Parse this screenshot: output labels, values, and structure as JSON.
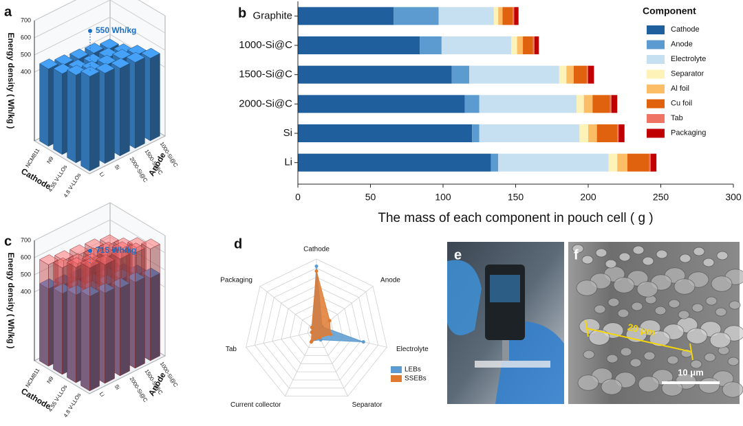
{
  "chart_data": [
    {
      "panel": "a",
      "type": "bar3d",
      "zlabel": "Energy density ( Wh/kg )",
      "xlabel": "Cathode",
      "ylabel": "Anode",
      "cathodes": [
        "NCM811",
        "N9",
        "4.55 V-LLOs",
        "4.8 V-LLOs"
      ],
      "anodes": [
        "Li",
        "Si",
        "2000-Si@C",
        "1500-Si@C",
        "1000-Si@C"
      ],
      "layers": [
        {
          "color": "#3a86cf",
          "values": [
            [
              450,
              470,
              510,
              550
            ],
            [
              430,
              450,
              490,
              525
            ],
            [
              420,
              440,
              480,
              510
            ],
            [
              410,
              430,
              470,
              500
            ],
            [
              390,
              410,
              450,
              480
            ]
          ]
        }
      ],
      "zlim": [
        0,
        700
      ],
      "zticks": [
        400,
        500,
        600,
        700
      ],
      "annotation": "550 Wh/kg"
    },
    {
      "panel": "b",
      "type": "barh_stacked",
      "xlabel": "The mass of each component in pouch cell ( g )",
      "categories": [
        "Graphite",
        "1000-Si@C",
        "1500-Si@C",
        "2000-Si@C",
        "Si",
        "Li"
      ],
      "series": [
        {
          "name": "Cathode",
          "color": "#1f5f9e",
          "values": [
            66,
            84,
            106,
            115,
            120,
            133
          ]
        },
        {
          "name": "Anode",
          "color": "#5b9bd0",
          "values": [
            31,
            15,
            12,
            10,
            5,
            5
          ]
        },
        {
          "name": "Electrolyte",
          "color": "#c6e0f2",
          "values": [
            38,
            48,
            62,
            67,
            69,
            76
          ]
        },
        {
          "name": "Separator",
          "color": "#fdf2b8",
          "values": [
            3,
            4,
            5,
            5,
            6,
            6
          ]
        },
        {
          "name": "Al foil",
          "color": "#fbbd66",
          "values": [
            3,
            4,
            5,
            6,
            6,
            7
          ]
        },
        {
          "name": "Cu foil",
          "color": "#e0620f",
          "values": [
            7,
            7,
            9,
            12,
            14,
            15
          ]
        },
        {
          "name": "Tab",
          "color": "#f07464",
          "values": [
            1,
            1,
            1,
            1,
            1,
            1
          ]
        },
        {
          "name": "Packaging",
          "color": "#c00000",
          "values": [
            3,
            3,
            4,
            4,
            4,
            4
          ]
        }
      ],
      "xlim": [
        0,
        300
      ],
      "xticks": [
        0,
        50,
        100,
        150,
        200,
        250,
        300
      ],
      "legend_title": "Component",
      "legend": "right"
    },
    {
      "panel": "c",
      "type": "bar3d",
      "zlabel": "Energy density ( Wh/kg )",
      "xlabel": "Cathode",
      "ylabel": "Anode",
      "cathodes": [
        "NCM811",
        "N9",
        "4.55 V-LLOs",
        "4.8 V-LLOs"
      ],
      "anodes": [
        "Li",
        "Si",
        "2000-Si@C",
        "1500-Si@C",
        "1000-Si@C"
      ],
      "layers": [
        {
          "color": "#3a86cf",
          "values": [
            [
              450,
              470,
              510,
              550
            ],
            [
              430,
              450,
              490,
              525
            ],
            [
              420,
              440,
              480,
              510
            ],
            [
              410,
              430,
              470,
              500
            ],
            [
              390,
              410,
              450,
              480
            ]
          ]
        },
        {
          "color": "#e8585a",
          "opacity": 0.5,
          "values": [
            [
              590,
              620,
              670,
              715
            ],
            [
              570,
              600,
              650,
              690
            ],
            [
              560,
              590,
              640,
              680
            ],
            [
              550,
              580,
              630,
              670
            ],
            [
              530,
              560,
              610,
              650
            ]
          ]
        }
      ],
      "zlim": [
        0,
        700
      ],
      "zticks": [
        400,
        500,
        600,
        700
      ],
      "annotation": "715 Wh/kg"
    },
    {
      "panel": "d",
      "type": "radar",
      "axes": [
        "Cathode",
        "Anode",
        "Electrolyte",
        "Separator",
        "Current collector",
        "Tab",
        "Packaging"
      ],
      "series": [
        {
          "name": "LEBs",
          "color": "#5b9bd0",
          "values": [
            54,
            6,
            40,
            8,
            9,
            4,
            4
          ]
        },
        {
          "name": "SSEBs",
          "color": "#e07a30",
          "values": [
            50,
            14,
            12,
            6,
            10,
            4,
            5
          ]
        }
      ],
      "rlim": [
        0,
        60
      ],
      "rings": 8
    }
  ],
  "images": [
    {
      "label": "e"
    },
    {
      "label": "f",
      "measurement": "20 μm",
      "scale_bar": "10 μm"
    }
  ]
}
